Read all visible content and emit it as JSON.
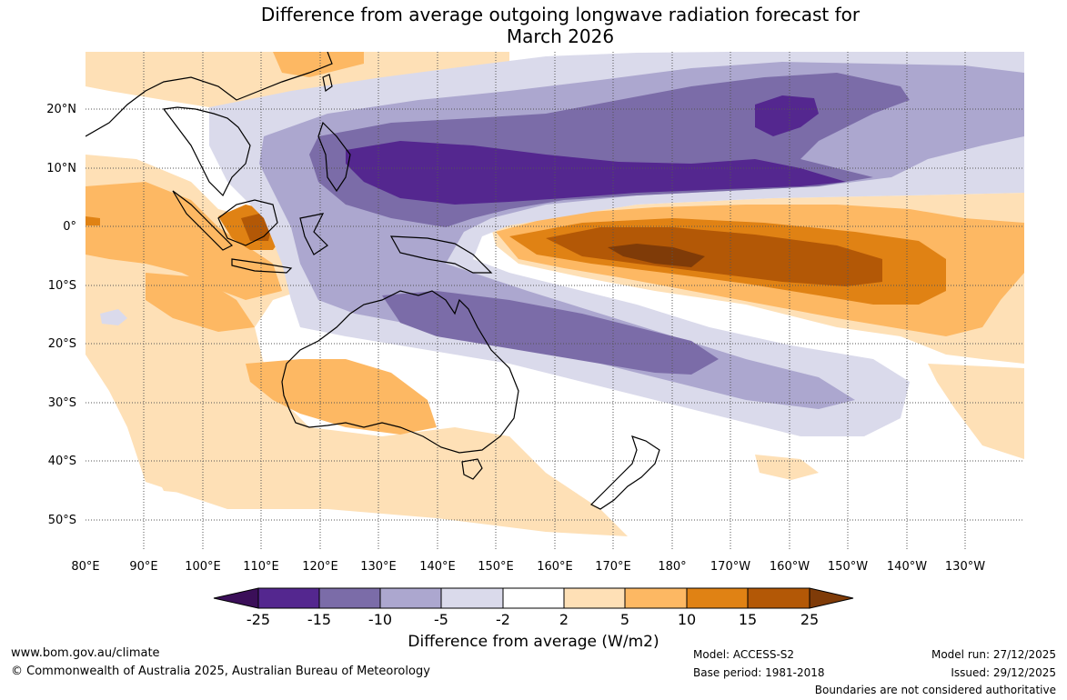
{
  "title": {
    "line1": "Difference from average outgoing longwave radiation forecast for",
    "line2": "March 2026"
  },
  "map": {
    "lat_labels": [
      "20°N",
      "10°N",
      "0°",
      "10°S",
      "20°S",
      "30°S",
      "40°S",
      "50°S"
    ],
    "lon_labels": [
      "80°E",
      "90°E",
      "100°E",
      "110°E",
      "120°E",
      "130°E",
      "140°E",
      "150°E",
      "160°E",
      "170°E",
      "180°",
      "170°W",
      "160°W",
      "150°W",
      "140°W",
      "130°W"
    ]
  },
  "colorbar": {
    "labels": [
      "-25",
      "-15",
      "-10",
      "-5",
      "-2",
      "2",
      "5",
      "10",
      "15",
      "25"
    ],
    "colors": [
      "#3b0f59",
      "#54278f",
      "#7b6ca8",
      "#aca7cf",
      "#dadaeb",
      "#ffffff",
      "#fee0b6",
      "#fdb863",
      "#e08214",
      "#b35806",
      "#7f3b08"
    ],
    "title": "Difference from average (W/m2)"
  },
  "footer": {
    "url": "www.bom.gov.au/climate",
    "copyright": "© Commonwealth of Australia 2025, Australian Bureau of Meteorology",
    "model": "Model: ACCESS-S2",
    "base_period": "Base period: 1981-2018",
    "model_run": "Model run: 27/12/2025",
    "issued": "Issued: 29/12/2025",
    "disclaimer": "Boundaries are not considered authoritative"
  }
}
